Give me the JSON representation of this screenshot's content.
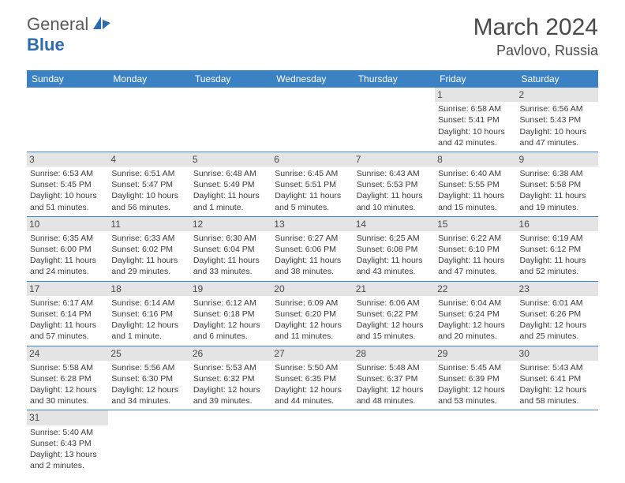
{
  "logo": {
    "text1": "General",
    "text2": "Blue"
  },
  "title": "March 2024",
  "location": "Pavlovo, Russia",
  "colors": {
    "header_bg": "#3b82c4",
    "header_text": "#ffffff",
    "daynum_bg": "#e4e4e4",
    "text": "#3a3a3a",
    "rule": "#3b82c4"
  },
  "weekdays": [
    "Sunday",
    "Monday",
    "Tuesday",
    "Wednesday",
    "Thursday",
    "Friday",
    "Saturday"
  ],
  "weeks": [
    [
      null,
      null,
      null,
      null,
      null,
      {
        "n": "1",
        "sr": "Sunrise: 6:58 AM",
        "ss": "Sunset: 5:41 PM",
        "d1": "Daylight: 10 hours",
        "d2": "and 42 minutes."
      },
      {
        "n": "2",
        "sr": "Sunrise: 6:56 AM",
        "ss": "Sunset: 5:43 PM",
        "d1": "Daylight: 10 hours",
        "d2": "and 47 minutes."
      }
    ],
    [
      {
        "n": "3",
        "sr": "Sunrise: 6:53 AM",
        "ss": "Sunset: 5:45 PM",
        "d1": "Daylight: 10 hours",
        "d2": "and 51 minutes."
      },
      {
        "n": "4",
        "sr": "Sunrise: 6:51 AM",
        "ss": "Sunset: 5:47 PM",
        "d1": "Daylight: 10 hours",
        "d2": "and 56 minutes."
      },
      {
        "n": "5",
        "sr": "Sunrise: 6:48 AM",
        "ss": "Sunset: 5:49 PM",
        "d1": "Daylight: 11 hours",
        "d2": "and 1 minute."
      },
      {
        "n": "6",
        "sr": "Sunrise: 6:45 AM",
        "ss": "Sunset: 5:51 PM",
        "d1": "Daylight: 11 hours",
        "d2": "and 5 minutes."
      },
      {
        "n": "7",
        "sr": "Sunrise: 6:43 AM",
        "ss": "Sunset: 5:53 PM",
        "d1": "Daylight: 11 hours",
        "d2": "and 10 minutes."
      },
      {
        "n": "8",
        "sr": "Sunrise: 6:40 AM",
        "ss": "Sunset: 5:55 PM",
        "d1": "Daylight: 11 hours",
        "d2": "and 15 minutes."
      },
      {
        "n": "9",
        "sr": "Sunrise: 6:38 AM",
        "ss": "Sunset: 5:58 PM",
        "d1": "Daylight: 11 hours",
        "d2": "and 19 minutes."
      }
    ],
    [
      {
        "n": "10",
        "sr": "Sunrise: 6:35 AM",
        "ss": "Sunset: 6:00 PM",
        "d1": "Daylight: 11 hours",
        "d2": "and 24 minutes."
      },
      {
        "n": "11",
        "sr": "Sunrise: 6:33 AM",
        "ss": "Sunset: 6:02 PM",
        "d1": "Daylight: 11 hours",
        "d2": "and 29 minutes."
      },
      {
        "n": "12",
        "sr": "Sunrise: 6:30 AM",
        "ss": "Sunset: 6:04 PM",
        "d1": "Daylight: 11 hours",
        "d2": "and 33 minutes."
      },
      {
        "n": "13",
        "sr": "Sunrise: 6:27 AM",
        "ss": "Sunset: 6:06 PM",
        "d1": "Daylight: 11 hours",
        "d2": "and 38 minutes."
      },
      {
        "n": "14",
        "sr": "Sunrise: 6:25 AM",
        "ss": "Sunset: 6:08 PM",
        "d1": "Daylight: 11 hours",
        "d2": "and 43 minutes."
      },
      {
        "n": "15",
        "sr": "Sunrise: 6:22 AM",
        "ss": "Sunset: 6:10 PM",
        "d1": "Daylight: 11 hours",
        "d2": "and 47 minutes."
      },
      {
        "n": "16",
        "sr": "Sunrise: 6:19 AM",
        "ss": "Sunset: 6:12 PM",
        "d1": "Daylight: 11 hours",
        "d2": "and 52 minutes."
      }
    ],
    [
      {
        "n": "17",
        "sr": "Sunrise: 6:17 AM",
        "ss": "Sunset: 6:14 PM",
        "d1": "Daylight: 11 hours",
        "d2": "and 57 minutes."
      },
      {
        "n": "18",
        "sr": "Sunrise: 6:14 AM",
        "ss": "Sunset: 6:16 PM",
        "d1": "Daylight: 12 hours",
        "d2": "and 1 minute."
      },
      {
        "n": "19",
        "sr": "Sunrise: 6:12 AM",
        "ss": "Sunset: 6:18 PM",
        "d1": "Daylight: 12 hours",
        "d2": "and 6 minutes."
      },
      {
        "n": "20",
        "sr": "Sunrise: 6:09 AM",
        "ss": "Sunset: 6:20 PM",
        "d1": "Daylight: 12 hours",
        "d2": "and 11 minutes."
      },
      {
        "n": "21",
        "sr": "Sunrise: 6:06 AM",
        "ss": "Sunset: 6:22 PM",
        "d1": "Daylight: 12 hours",
        "d2": "and 15 minutes."
      },
      {
        "n": "22",
        "sr": "Sunrise: 6:04 AM",
        "ss": "Sunset: 6:24 PM",
        "d1": "Daylight: 12 hours",
        "d2": "and 20 minutes."
      },
      {
        "n": "23",
        "sr": "Sunrise: 6:01 AM",
        "ss": "Sunset: 6:26 PM",
        "d1": "Daylight: 12 hours",
        "d2": "and 25 minutes."
      }
    ],
    [
      {
        "n": "24",
        "sr": "Sunrise: 5:58 AM",
        "ss": "Sunset: 6:28 PM",
        "d1": "Daylight: 12 hours",
        "d2": "and 30 minutes."
      },
      {
        "n": "25",
        "sr": "Sunrise: 5:56 AM",
        "ss": "Sunset: 6:30 PM",
        "d1": "Daylight: 12 hours",
        "d2": "and 34 minutes."
      },
      {
        "n": "26",
        "sr": "Sunrise: 5:53 AM",
        "ss": "Sunset: 6:32 PM",
        "d1": "Daylight: 12 hours",
        "d2": "and 39 minutes."
      },
      {
        "n": "27",
        "sr": "Sunrise: 5:50 AM",
        "ss": "Sunset: 6:35 PM",
        "d1": "Daylight: 12 hours",
        "d2": "and 44 minutes."
      },
      {
        "n": "28",
        "sr": "Sunrise: 5:48 AM",
        "ss": "Sunset: 6:37 PM",
        "d1": "Daylight: 12 hours",
        "d2": "and 48 minutes."
      },
      {
        "n": "29",
        "sr": "Sunrise: 5:45 AM",
        "ss": "Sunset: 6:39 PM",
        "d1": "Daylight: 12 hours",
        "d2": "and 53 minutes."
      },
      {
        "n": "30",
        "sr": "Sunrise: 5:43 AM",
        "ss": "Sunset: 6:41 PM",
        "d1": "Daylight: 12 hours",
        "d2": "and 58 minutes."
      }
    ],
    [
      {
        "n": "31",
        "sr": "Sunrise: 5:40 AM",
        "ss": "Sunset: 6:43 PM",
        "d1": "Daylight: 13 hours",
        "d2": "and 2 minutes."
      },
      null,
      null,
      null,
      null,
      null,
      null
    ]
  ]
}
